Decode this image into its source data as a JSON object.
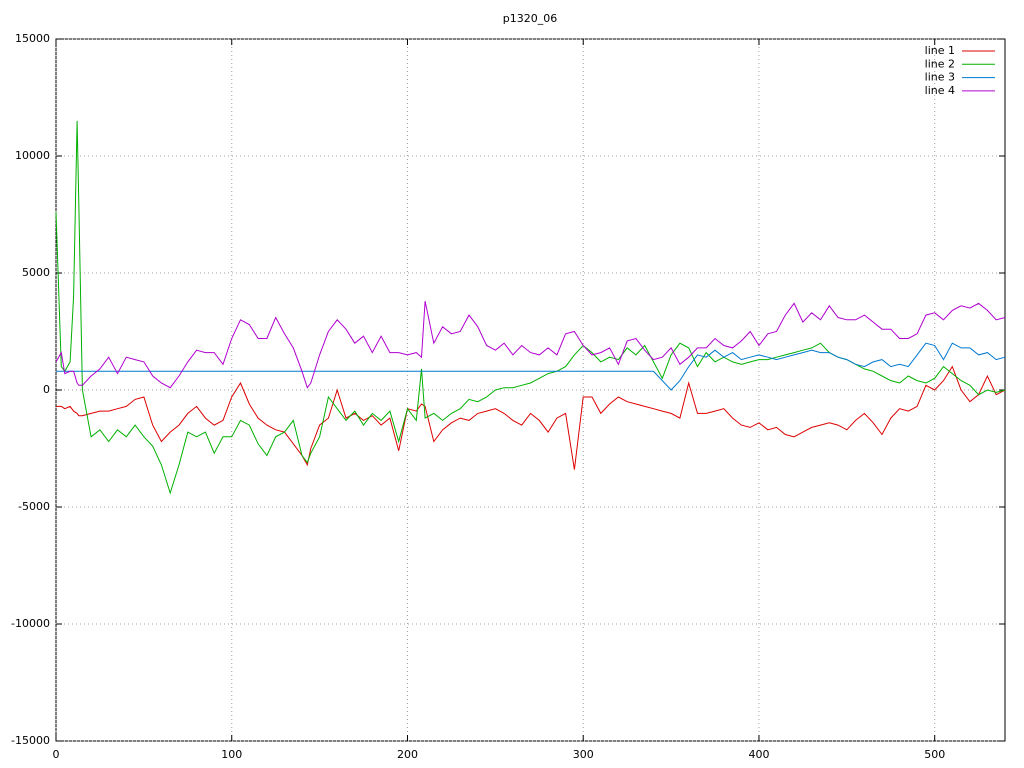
{
  "chart_data": {
    "type": "line",
    "title": "p1320_06",
    "x": [
      0,
      3,
      5,
      8,
      10,
      12,
      13,
      15,
      20,
      25,
      30,
      35,
      40,
      45,
      50,
      55,
      60,
      65,
      70,
      75,
      80,
      85,
      90,
      95,
      100,
      105,
      110,
      115,
      120,
      125,
      130,
      135,
      140,
      143,
      145,
      150,
      155,
      160,
      165,
      170,
      175,
      180,
      185,
      190,
      195,
      200,
      205,
      208,
      210,
      215,
      220,
      225,
      230,
      235,
      240,
      245,
      250,
      255,
      260,
      265,
      270,
      275,
      280,
      285,
      290,
      295,
      300,
      305,
      310,
      315,
      320,
      325,
      330,
      335,
      340,
      345,
      350,
      355,
      360,
      365,
      370,
      375,
      380,
      385,
      390,
      395,
      400,
      405,
      410,
      415,
      420,
      425,
      430,
      435,
      440,
      445,
      450,
      455,
      460,
      465,
      470,
      475,
      480,
      485,
      490,
      495,
      500,
      505,
      510,
      515,
      520,
      525,
      530,
      535,
      540
    ],
    "series": [
      {
        "name": "line 1",
        "color": "#dd0000",
        "values": [
          -700,
          -700,
          -800,
          -700,
          -900,
          -1000,
          -1100,
          -1100,
          -1000,
          -900,
          -900,
          -800,
          -700,
          -400,
          -300,
          -1500,
          -2200,
          -1800,
          -1500,
          -1000,
          -700,
          -1200,
          -1500,
          -1300,
          -300,
          300,
          -600,
          -1200,
          -1500,
          -1700,
          -1800,
          -2300,
          -2800,
          -3200,
          -2500,
          -1500,
          -1200,
          0,
          -1200,
          -1000,
          -1300,
          -1100,
          -1500,
          -1200,
          -2600,
          -800,
          -900,
          -600,
          -700,
          -2200,
          -1700,
          -1400,
          -1200,
          -1300,
          -1000,
          -900,
          -800,
          -1000,
          -1300,
          -1500,
          -1000,
          -1300,
          -1800,
          -1200,
          -1000,
          -3400,
          -300,
          -300,
          -1000,
          -600,
          -300,
          -500,
          -600,
          -700,
          -800,
          -900,
          -1000,
          -1200,
          300,
          -1000,
          -1000,
          -900,
          -800,
          -1200,
          -1500,
          -1600,
          -1400,
          -1700,
          -1600,
          -1900,
          -2000,
          -1800,
          -1600,
          -1500,
          -1400,
          -1500,
          -1700,
          -1300,
          -1000,
          -1400,
          -1900,
          -1200,
          -800,
          -900,
          -700,
          200,
          0,
          400,
          1000,
          0,
          -500,
          -200,
          600,
          -200,
          0
        ]
      },
      {
        "name": "line 2",
        "color": "#00b000",
        "values": [
          7600,
          1000,
          800,
          1200,
          4000,
          11500,
          8000,
          0,
          -2000,
          -1700,
          -2200,
          -1700,
          -2000,
          -1500,
          -2000,
          -2400,
          -3200,
          -4400,
          -3200,
          -1800,
          -2000,
          -1800,
          -2700,
          -2000,
          -2000,
          -1300,
          -1500,
          -2300,
          -2800,
          -2000,
          -1800,
          -1300,
          -2800,
          -3100,
          -2700,
          -2000,
          -300,
          -800,
          -1300,
          -900,
          -1500,
          -1000,
          -1300,
          -900,
          -2200,
          -800,
          -1300,
          900,
          -1200,
          -1000,
          -1300,
          -1000,
          -800,
          -400,
          -500,
          -300,
          0,
          100,
          100,
          200,
          300,
          500,
          700,
          800,
          1000,
          1500,
          1900,
          1600,
          1200,
          1400,
          1300,
          1800,
          1500,
          1900,
          1200,
          500,
          1500,
          2000,
          1800,
          1000,
          1600,
          1200,
          1400,
          1200,
          1100,
          1200,
          1300,
          1300,
          1400,
          1500,
          1600,
          1700,
          1800,
          2000,
          1600,
          1400,
          1300,
          1100,
          900,
          800,
          600,
          400,
          300,
          600,
          400,
          300,
          500,
          1000,
          700,
          400,
          200,
          -200,
          0,
          -100,
          0
        ]
      },
      {
        "name": "line 3",
        "color": "#0078d0",
        "values": [
          800,
          800,
          800,
          800,
          800,
          800,
          800,
          800,
          800,
          800,
          800,
          800,
          800,
          800,
          800,
          800,
          800,
          800,
          800,
          800,
          800,
          800,
          800,
          800,
          800,
          800,
          800,
          800,
          800,
          800,
          800,
          800,
          800,
          800,
          800,
          800,
          800,
          800,
          800,
          800,
          800,
          800,
          800,
          800,
          800,
          800,
          800,
          800,
          800,
          800,
          800,
          800,
          800,
          800,
          800,
          800,
          800,
          800,
          800,
          800,
          800,
          800,
          800,
          800,
          800,
          800,
          800,
          800,
          800,
          800,
          800,
          800,
          800,
          800,
          800,
          400,
          0,
          400,
          1000,
          1500,
          1400,
          1700,
          1400,
          1600,
          1300,
          1400,
          1500,
          1400,
          1300,
          1400,
          1500,
          1600,
          1700,
          1600,
          1600,
          1400,
          1300,
          1100,
          1000,
          1200,
          1300,
          1000,
          1100,
          1000,
          1500,
          2000,
          1900,
          1300,
          2000,
          1800,
          1800,
          1500,
          1600,
          1300,
          1400
        ]
      },
      {
        "name": "line 4",
        "color": "#b000d0",
        "values": [
          1200,
          1600,
          700,
          800,
          800,
          300,
          200,
          200,
          600,
          900,
          1400,
          700,
          1400,
          1300,
          1200,
          600,
          300,
          100,
          600,
          1200,
          1700,
          1600,
          1600,
          1100,
          2200,
          3000,
          2800,
          2200,
          2200,
          3100,
          2400,
          1800,
          800,
          100,
          300,
          1500,
          2500,
          3000,
          2600,
          2000,
          2300,
          1600,
          2300,
          1600,
          1600,
          1500,
          1600,
          1400,
          3800,
          2000,
          2700,
          2400,
          2500,
          3200,
          2700,
          1900,
          1700,
          2000,
          1500,
          1900,
          1600,
          1500,
          1800,
          1500,
          2400,
          2500,
          1900,
          1500,
          1600,
          1800,
          1100,
          2100,
          2200,
          1700,
          1300,
          1400,
          1800,
          1100,
          1400,
          1800,
          1800,
          2200,
          1900,
          1800,
          2100,
          2500,
          1900,
          2400,
          2500,
          3200,
          3700,
          2900,
          3300,
          3000,
          3600,
          3100,
          3000,
          3000,
          3200,
          2900,
          2600,
          2600,
          2200,
          2200,
          2400,
          3200,
          3300,
          3000,
          3400,
          3600,
          3500,
          3700,
          3400,
          3000,
          3100
        ]
      }
    ],
    "xlim": [
      0,
      540
    ],
    "xticks": [
      0,
      100,
      200,
      300,
      400,
      500
    ],
    "ylim": [
      -15000,
      15000
    ],
    "yticks": [
      -15000,
      -10000,
      -5000,
      0,
      5000,
      10000,
      15000
    ],
    "grid": true,
    "legend": "top-right"
  }
}
